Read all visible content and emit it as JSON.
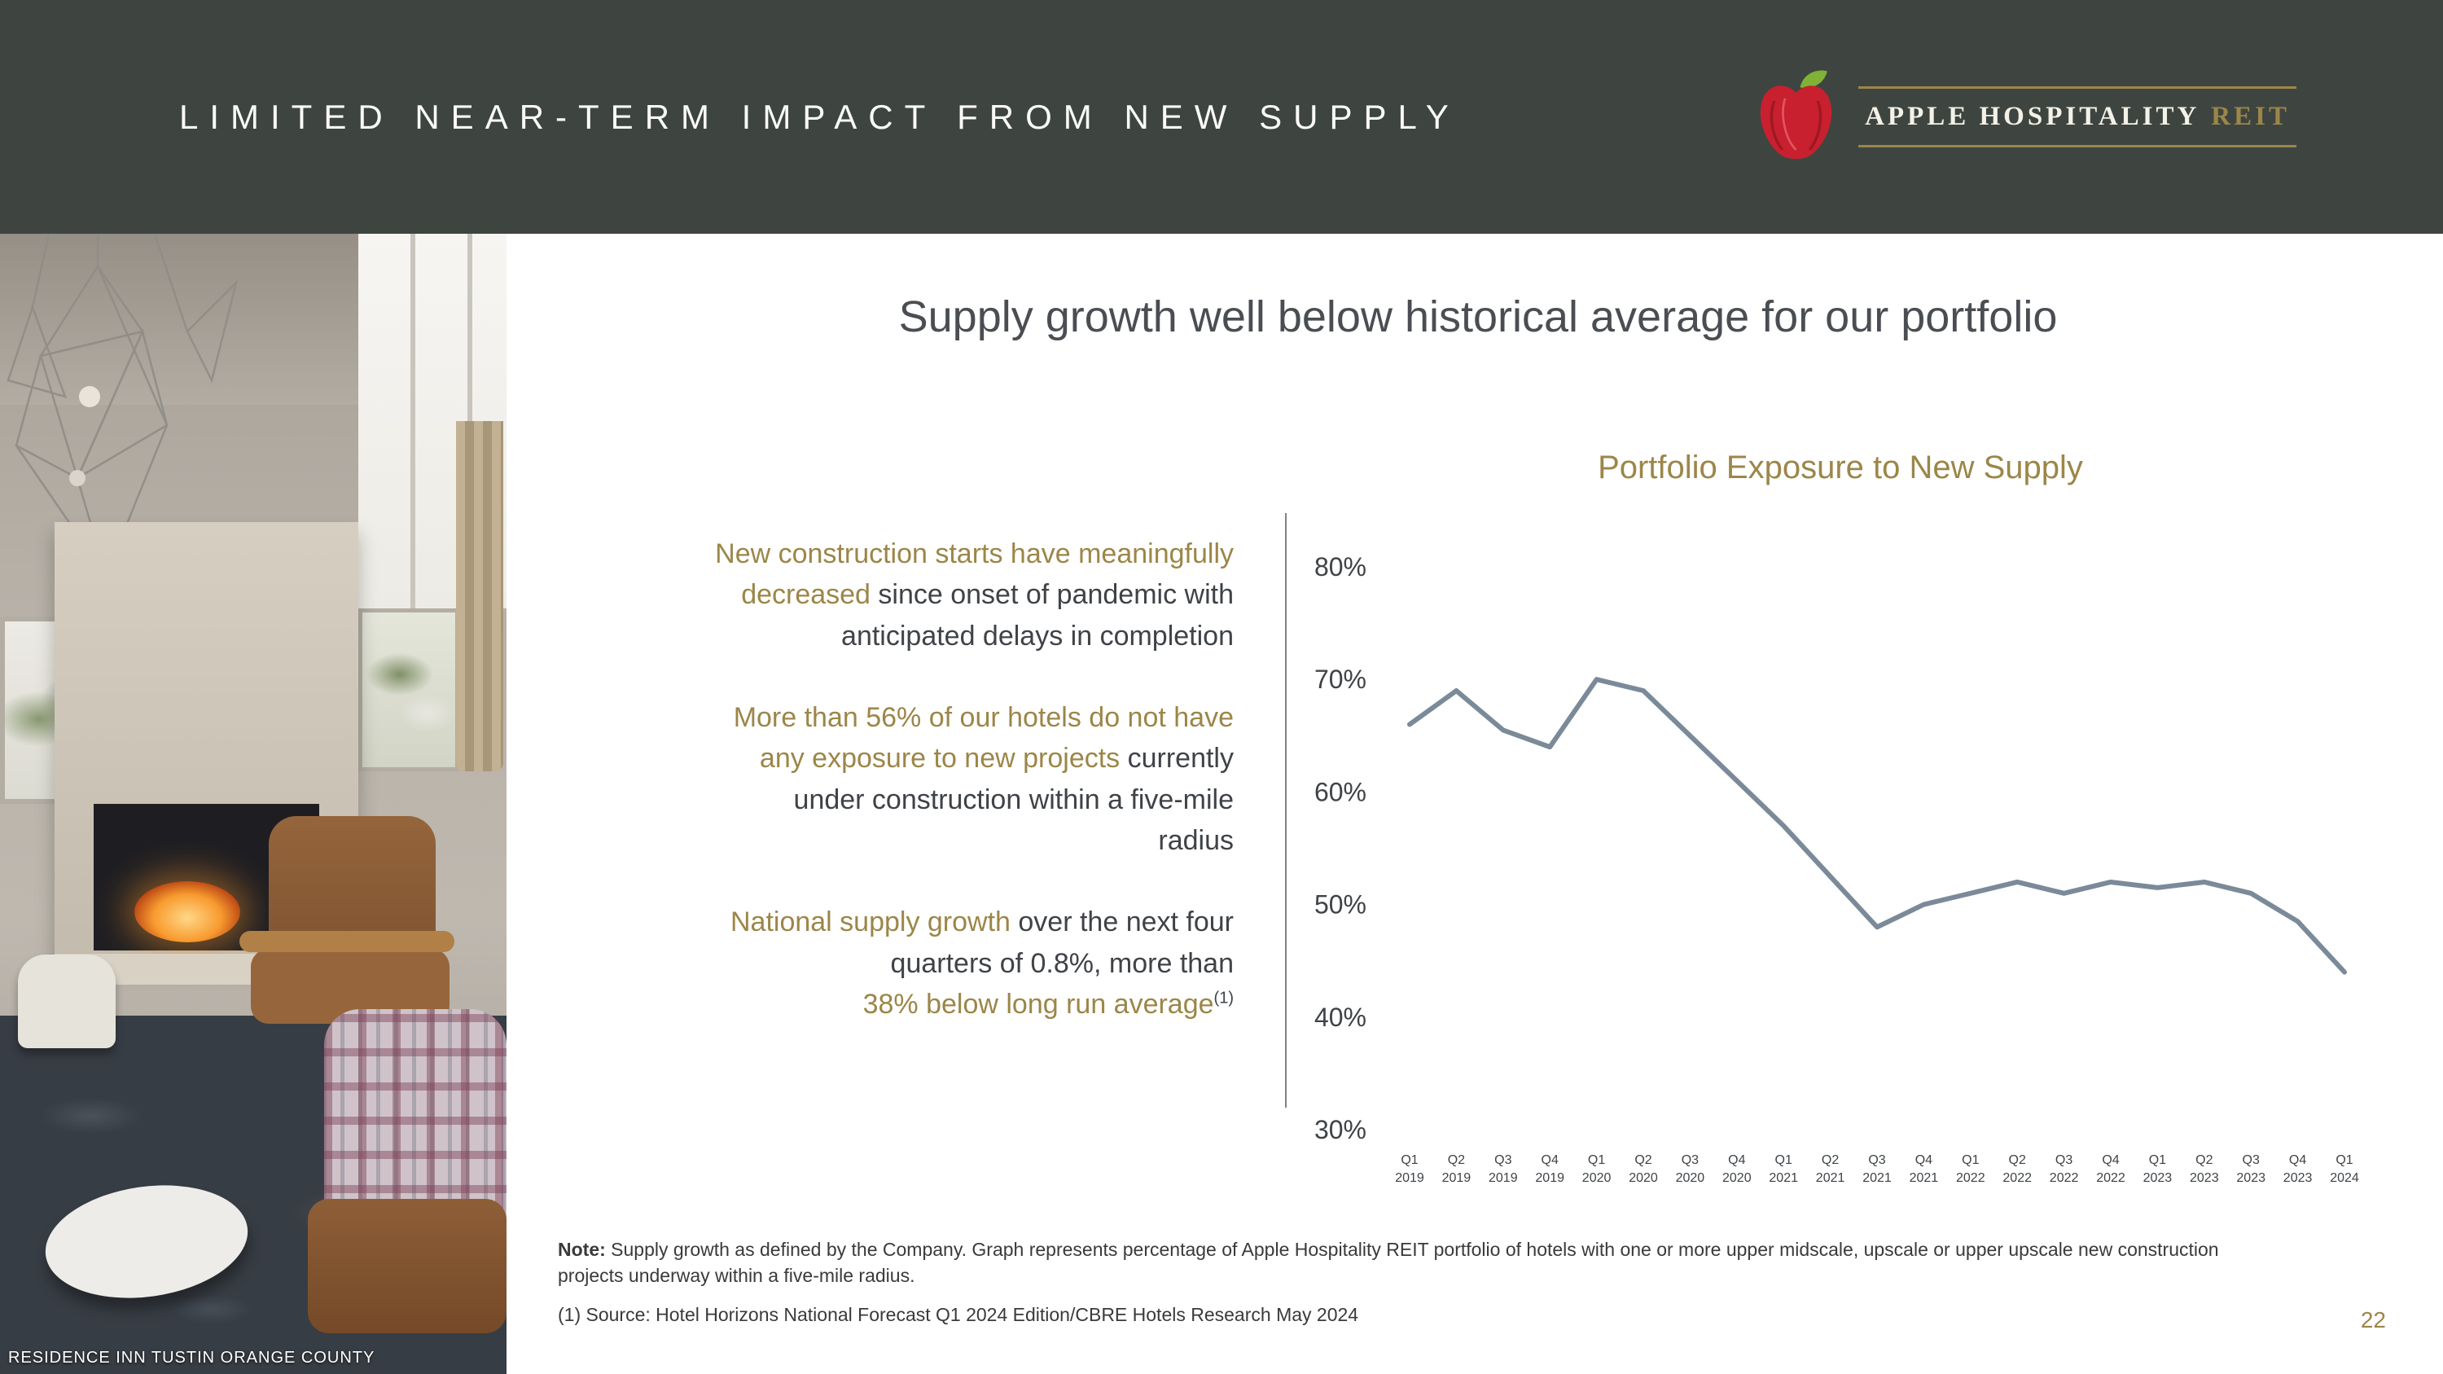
{
  "header": {
    "title": "LIMITED NEAR-TERM IMPACT FROM NEW SUPPLY",
    "logo": {
      "name_primary": "APPLE HOSPITALITY",
      "name_accent": "REIT"
    }
  },
  "photo": {
    "caption": "RESIDENCE INN TUSTIN ORANGE COUNTY"
  },
  "main": {
    "heading": "Supply growth well below historical average for our portfolio",
    "bullets": [
      {
        "lines": [
          [
            {
              "t": "New construction starts have meaningfully",
              "hl": true
            }
          ],
          [
            {
              "t": "decreased",
              "hl": true
            },
            {
              "t": " since onset of pandemic with"
            }
          ],
          [
            {
              "t": "anticipated delays in completion"
            }
          ]
        ]
      },
      {
        "lines": [
          [
            {
              "t": "More than 56% of our hotels do not have",
              "hl": true
            }
          ],
          [
            {
              "t": "any exposure to new projects",
              "hl": true
            },
            {
              "t": " currently"
            }
          ],
          [
            {
              "t": "under construction within a five-mile"
            }
          ],
          [
            {
              "t": "radius"
            }
          ]
        ]
      },
      {
        "lines": [
          [
            {
              "t": "National supply growth",
              "hl": true
            },
            {
              "t": " over the next four"
            }
          ],
          [
            {
              "t": "quarters of 0.8%, more than"
            }
          ],
          [
            {
              "t": "38% below long run average",
              "hl": true
            },
            {
              "t": "(1)",
              "sup": true
            }
          ]
        ]
      }
    ],
    "notes": [
      {
        "segments": [
          {
            "t": "Note:",
            "bold": true
          },
          {
            "t": " Supply growth as defined by the Company. Graph represents percentage of Apple Hospitality REIT portfolio of hotels with one or more upper midscale, upscale or upper upscale new construction projects underway within a five-mile radius."
          }
        ]
      },
      {
        "segments": [
          {
            "t": "(1) Source: Hotel Horizons National Forecast Q1 2024 Edition/CBRE Hotels Research May 2024"
          }
        ]
      }
    ]
  },
  "chart_data": {
    "type": "line",
    "title": "Portfolio Exposure to New Supply",
    "categories": [
      "Q1 2019",
      "Q2 2019",
      "Q3 2019",
      "Q4 2019",
      "Q1 2020",
      "Q2 2020",
      "Q3 2020",
      "Q4 2020",
      "Q1 2021",
      "Q2 2021",
      "Q3 2021",
      "Q4 2021",
      "Q1 2022",
      "Q2 2022",
      "Q3 2022",
      "Q4 2022",
      "Q1 2023",
      "Q2 2023",
      "Q3 2023",
      "Q4 2023",
      "Q1 2024"
    ],
    "values": [
      66,
      69,
      65.5,
      64,
      70,
      69,
      65,
      61,
      57,
      52.5,
      48,
      50,
      51,
      52,
      51,
      52,
      51.5,
      52,
      51,
      48.5,
      44
    ],
    "xlabel": "",
    "ylabel": "",
    "ylim": [
      30,
      80
    ],
    "yticks": [
      80,
      70,
      60,
      50,
      40,
      30
    ],
    "grid": false,
    "legend": "none",
    "line_color": "#7b8a99"
  },
  "footer": {
    "page_number": "22"
  }
}
